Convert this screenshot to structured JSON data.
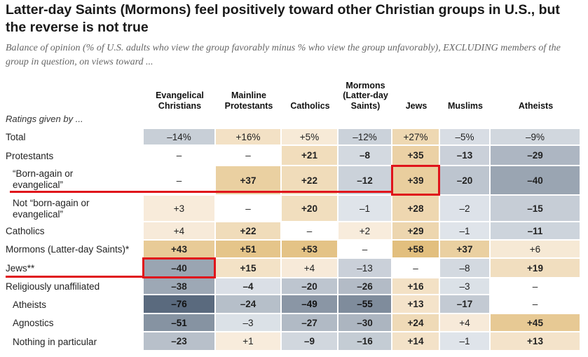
{
  "title": "Latter-day Saints (Mormons) feel positively toward other Christian groups in U.S., but the reverse is not true",
  "subtitle": "Balance of opinion (% of U.S. adults who view the group favorably minus % who view the group unfavorably), EXCLUDING members of the group in question, on views toward ...",
  "ratings_label": "Ratings given by ...",
  "columns": [
    "Evangelical Christians",
    "Mainline Protestants",
    "Catholics",
    "Mormons (Latter-day Saints)",
    "Jews",
    "Muslims",
    "Atheists"
  ],
  "colors": {
    "negative_strong": "#5a6a7e",
    "negative_light": "#dfe4ea",
    "positive_strong": "#e2bf7e",
    "positive_light": "#f8ecdc",
    "highlight": "#e0141b"
  },
  "chart_data": {
    "type": "table",
    "rows": [
      {
        "label": "Total",
        "cells": [
          {
            "text": "–14%",
            "value": -14,
            "bold": false
          },
          {
            "text": "+16%",
            "value": 16,
            "bold": false
          },
          {
            "text": "+5%",
            "value": 5,
            "bold": false
          },
          {
            "text": "–12%",
            "value": -12,
            "bold": false
          },
          {
            "text": "+27%",
            "value": 27,
            "bold": false
          },
          {
            "text": "–5%",
            "value": -5,
            "bold": false
          },
          {
            "text": "–9%",
            "value": -9,
            "bold": false
          }
        ]
      },
      {
        "label": "Protestants",
        "cells": [
          {
            "text": "–",
            "value": null,
            "bold": false
          },
          {
            "text": "–",
            "value": null,
            "bold": false
          },
          {
            "text": "+21",
            "value": 21,
            "bold": true
          },
          {
            "text": "–8",
            "value": -8,
            "bold": true
          },
          {
            "text": "+35",
            "value": 35,
            "bold": true
          },
          {
            "text": "–13",
            "value": -13,
            "bold": true
          },
          {
            "text": "–29",
            "value": -29,
            "bold": true
          }
        ]
      },
      {
        "label": "“Born-again or evangelical”",
        "cells": [
          {
            "text": "–",
            "value": null,
            "bold": false
          },
          {
            "text": "+37",
            "value": 37,
            "bold": true
          },
          {
            "text": "+22",
            "value": 22,
            "bold": true
          },
          {
            "text": "–12",
            "value": -12,
            "bold": true
          },
          {
            "text": "+39",
            "value": 39,
            "bold": true
          },
          {
            "text": "–20",
            "value": -20,
            "bold": true
          },
          {
            "text": "–40",
            "value": -40,
            "bold": true
          }
        ]
      },
      {
        "label": "Not “born-again or evangelical”",
        "cells": [
          {
            "text": "+3",
            "value": 3,
            "bold": false
          },
          {
            "text": "–",
            "value": null,
            "bold": false
          },
          {
            "text": "+20",
            "value": 20,
            "bold": true
          },
          {
            "text": "–1",
            "value": -1,
            "bold": false
          },
          {
            "text": "+28",
            "value": 28,
            "bold": true
          },
          {
            "text": "–2",
            "value": -2,
            "bold": false
          },
          {
            "text": "–15",
            "value": -15,
            "bold": true
          }
        ]
      },
      {
        "label": "Catholics",
        "cells": [
          {
            "text": "+4",
            "value": 4,
            "bold": false
          },
          {
            "text": "+22",
            "value": 22,
            "bold": true
          },
          {
            "text": "–",
            "value": null,
            "bold": false
          },
          {
            "text": "+2",
            "value": 2,
            "bold": false
          },
          {
            "text": "+29",
            "value": 29,
            "bold": true
          },
          {
            "text": "–1",
            "value": -1,
            "bold": false
          },
          {
            "text": "–11",
            "value": -11,
            "bold": true
          }
        ]
      },
      {
        "label": "Mormons (Latter-day Saints)*",
        "cells": [
          {
            "text": "+43",
            "value": 43,
            "bold": true
          },
          {
            "text": "+51",
            "value": 51,
            "bold": true
          },
          {
            "text": "+53",
            "value": 53,
            "bold": true
          },
          {
            "text": "–",
            "value": null,
            "bold": false
          },
          {
            "text": "+58",
            "value": 58,
            "bold": true
          },
          {
            "text": "+37",
            "value": 37,
            "bold": true
          },
          {
            "text": "+6",
            "value": 6,
            "bold": false
          }
        ]
      },
      {
        "label": "Jews**",
        "cells": [
          {
            "text": "–40",
            "value": -40,
            "bold": true
          },
          {
            "text": "+15",
            "value": 15,
            "bold": true
          },
          {
            "text": "+4",
            "value": 4,
            "bold": false
          },
          {
            "text": "–13",
            "value": -13,
            "bold": false
          },
          {
            "text": "–",
            "value": null,
            "bold": false
          },
          {
            "text": "–8",
            "value": -8,
            "bold": false
          },
          {
            "text": "+19",
            "value": 19,
            "bold": true
          }
        ]
      },
      {
        "label": "Religiously unaffiliated",
        "cells": [
          {
            "text": "–38",
            "value": -38,
            "bold": true
          },
          {
            "text": "–4",
            "value": -4,
            "bold": true
          },
          {
            "text": "–20",
            "value": -20,
            "bold": true
          },
          {
            "text": "–26",
            "value": -26,
            "bold": true
          },
          {
            "text": "+16",
            "value": 16,
            "bold": true
          },
          {
            "text": "–3",
            "value": -3,
            "bold": false
          },
          {
            "text": "–",
            "value": null,
            "bold": false
          }
        ]
      },
      {
        "label": "Atheists",
        "cells": [
          {
            "text": "–76",
            "value": -76,
            "bold": true
          },
          {
            "text": "–24",
            "value": -24,
            "bold": true
          },
          {
            "text": "–49",
            "value": -49,
            "bold": true
          },
          {
            "text": "–55",
            "value": -55,
            "bold": true
          },
          {
            "text": "+13",
            "value": 13,
            "bold": true
          },
          {
            "text": "–17",
            "value": -17,
            "bold": true
          },
          {
            "text": "–",
            "value": null,
            "bold": false
          }
        ]
      },
      {
        "label": "Agnostics",
        "cells": [
          {
            "text": "–51",
            "value": -51,
            "bold": true
          },
          {
            "text": "–3",
            "value": -3,
            "bold": false
          },
          {
            "text": "–27",
            "value": -27,
            "bold": true
          },
          {
            "text": "–30",
            "value": -30,
            "bold": true
          },
          {
            "text": "+24",
            "value": 24,
            "bold": true
          },
          {
            "text": "+4",
            "value": 4,
            "bold": false
          },
          {
            "text": "+45",
            "value": 45,
            "bold": true
          }
        ]
      },
      {
        "label": "Nothing in particular",
        "cells": [
          {
            "text": "–23",
            "value": -23,
            "bold": true
          },
          {
            "text": "+1",
            "value": 1,
            "bold": false
          },
          {
            "text": "–9",
            "value": -9,
            "bold": true
          },
          {
            "text": "–16",
            "value": -16,
            "bold": true
          },
          {
            "text": "+14",
            "value": 14,
            "bold": true
          },
          {
            "text": "–1",
            "value": -1,
            "bold": false
          },
          {
            "text": "+13",
            "value": 13,
            "bold": true
          }
        ]
      }
    ],
    "highlights": [
      {
        "row": "“Born-again or evangelical”",
        "column": "Jews"
      },
      {
        "row": "Jews**",
        "column": "Evangelical Christians"
      }
    ]
  }
}
